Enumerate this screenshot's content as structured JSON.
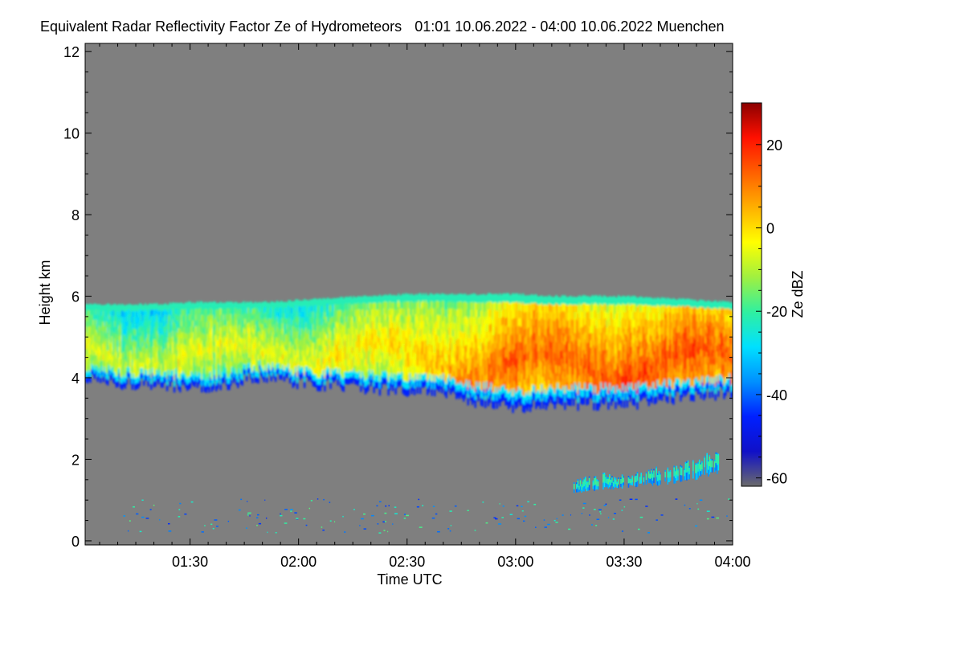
{
  "chart_data": {
    "type": "heatmap",
    "title": "Equivalent Radar Reflectivity Factor Ze of Hydrometeors",
    "time_range": "01:01 10.06.2022 - 04:00 10.06.2022",
    "location": "Muenchen",
    "xlabel": "Time UTC",
    "ylabel": "Height km",
    "x_start_min": 61,
    "x_end_min": 240,
    "x_ticks": [
      {
        "min": 90,
        "label": "01:30"
      },
      {
        "min": 120,
        "label": "02:00"
      },
      {
        "min": 150,
        "label": "02:30"
      },
      {
        "min": 180,
        "label": "03:00"
      },
      {
        "min": 210,
        "label": "03:30"
      },
      {
        "min": 240,
        "label": "04:00"
      }
    ],
    "ylim": [
      -0.1,
      12.2
    ],
    "y_ticks": [
      0,
      2,
      4,
      6,
      8,
      10,
      12
    ],
    "colorbar": {
      "label": "Ze dBZ",
      "range": [
        -62,
        30
      ],
      "ticks": [
        -60,
        -40,
        -20,
        0,
        20
      ],
      "colors": [
        "#6b6b6b",
        "#1010c8",
        "#0020ff",
        "#0090ff",
        "#00e0ff",
        "#30f0a0",
        "#a0f040",
        "#ffff00",
        "#ffb000",
        "#ff6000",
        "#ff1000",
        "#8b0000"
      ]
    },
    "cloud_layer": {
      "times_min": [
        61,
        70,
        80,
        90,
        100,
        110,
        120,
        130,
        140,
        150,
        160,
        170,
        180,
        190,
        200,
        210,
        220,
        230,
        240
      ],
      "top_km": [
        5.8,
        5.8,
        5.8,
        5.85,
        5.85,
        5.85,
        5.9,
        5.95,
        6.0,
        6.05,
        6.05,
        6.05,
        6.05,
        6.0,
        6.0,
        6.0,
        5.95,
        5.9,
        5.85
      ],
      "base_km": [
        3.9,
        3.8,
        3.8,
        3.7,
        3.8,
        4.0,
        3.8,
        3.75,
        3.7,
        3.6,
        3.55,
        3.35,
        3.2,
        3.3,
        3.3,
        3.3,
        3.4,
        3.5,
        3.6
      ],
      "max_dbz": [
        -5,
        -8,
        -8,
        -5,
        -5,
        -5,
        -5,
        -3,
        0,
        2,
        5,
        10,
        14,
        12,
        14,
        16,
        16,
        15,
        14
      ]
    },
    "low_echoes": {
      "times_min": [
        196,
        200,
        204,
        208,
        212,
        216,
        220,
        224,
        228,
        232,
        236
      ],
      "base_km": [
        1.2,
        1.25,
        1.3,
        1.3,
        1.35,
        1.4,
        1.4,
        1.45,
        1.5,
        1.6,
        1.7
      ],
      "top_km": [
        1.4,
        1.5,
        1.6,
        1.5,
        1.6,
        1.7,
        1.75,
        1.8,
        1.9,
        2.05,
        2.1
      ]
    }
  }
}
